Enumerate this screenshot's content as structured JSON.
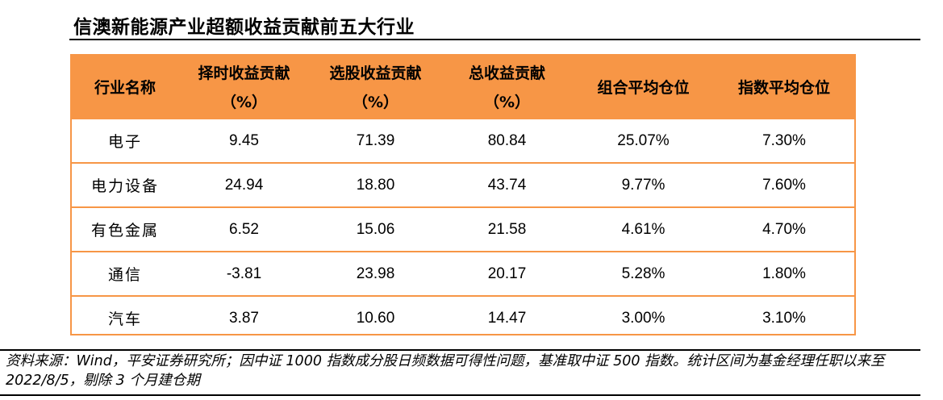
{
  "title": "信澳新能源产业超额收益贡献前五大行业",
  "table": {
    "headers": [
      {
        "line1": "行业名称",
        "line2": ""
      },
      {
        "line1": "择时收益贡献",
        "line2": "（%）"
      },
      {
        "line1": "选股收益贡献",
        "line2": "（%）"
      },
      {
        "line1": "总收益贡献",
        "line2": "（%）"
      },
      {
        "line1": "组合平均仓位",
        "line2": ""
      },
      {
        "line1": "指数平均仓位",
        "line2": ""
      }
    ],
    "rows": [
      [
        "电子",
        "9.45",
        "71.39",
        "80.84",
        "25.07%",
        "7.30%"
      ],
      [
        "电力设备",
        "24.94",
        "18.80",
        "43.74",
        "9.77%",
        "7.60%"
      ],
      [
        "有色金属",
        "6.52",
        "15.06",
        "21.58",
        "4.61%",
        "4.70%"
      ],
      [
        "通信",
        "-3.81",
        "23.98",
        "20.17",
        "5.28%",
        "1.80%"
      ],
      [
        "汽车",
        "3.87",
        "10.60",
        "14.47",
        "3.00%",
        "3.10%"
      ]
    ],
    "header_color": "#F79646",
    "border_color": "#F79646"
  },
  "source_note": "资料来源：Wind，平安证券研究所；因中证 1000 指数成分股日频数据可得性问题，基准取中证 500 指数。统计区间为基金经理任职以来至 2022/8/5，剔除 3 个月建仓期"
}
